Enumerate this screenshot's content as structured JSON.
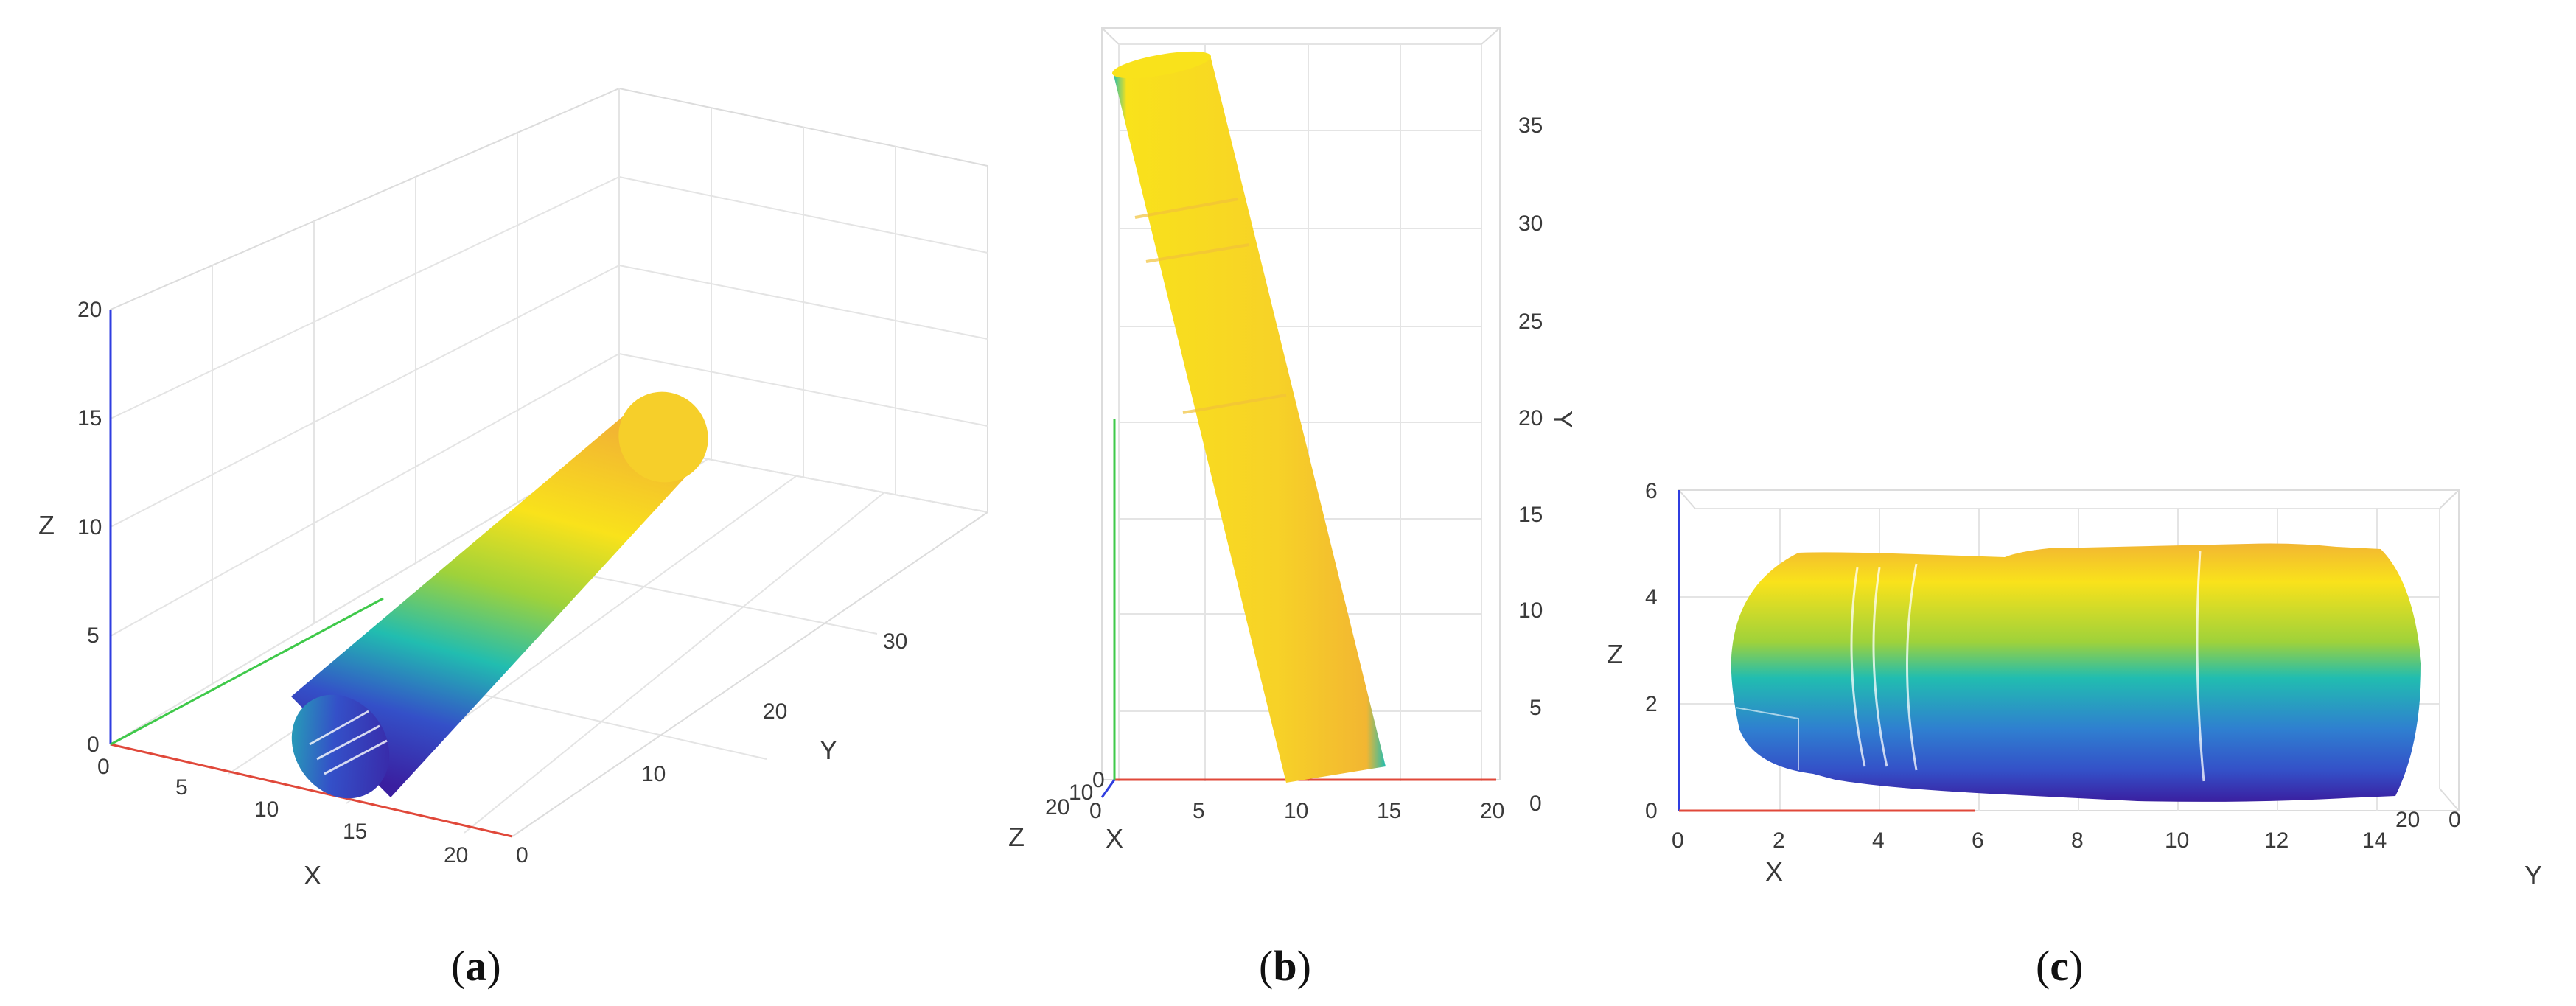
{
  "figure": {
    "caption_a_open": "(",
    "caption_a_letter": "a",
    "caption_a_close": ")",
    "caption_b_open": "(",
    "caption_b_letter": "b",
    "caption_b_close": ")",
    "caption_c_open": "(",
    "caption_c_letter": "c",
    "caption_c_close": ")"
  },
  "colors": {
    "surface_top": "#f9e21b",
    "surface_mid": "#f2b632",
    "surface_cyan": "#21bdb0",
    "surface_blue": "#3450c8",
    "surface_bottom": "#3a1fa0",
    "axis_x": "#e0483a",
    "axis_y": "#3fc94a",
    "axis_z": "#2f3ee0"
  },
  "chart_data": [
    {
      "id": "a",
      "type": "surface3d",
      "xlabel": "X",
      "ylabel": "Y",
      "zlabel": "Z",
      "xlim": [
        0,
        20
      ],
      "ylim": [
        0,
        40
      ],
      "zlim": [
        0,
        20
      ],
      "xticks": [
        "0",
        "5",
        "10",
        "15",
        "20"
      ],
      "yticks": [
        "0",
        "10",
        "20",
        "30"
      ],
      "zticks": [
        "0",
        "5",
        "10",
        "15",
        "20"
      ],
      "shape": "cylinder",
      "grid": true
    },
    {
      "id": "b",
      "type": "surface3d",
      "xlabel": "X",
      "ylabel": "Y",
      "zlabel": "Z",
      "xlim": [
        0,
        20
      ],
      "ylim": [
        0,
        38
      ],
      "xticks": [
        "0",
        "5",
        "10",
        "15",
        "20"
      ],
      "yticks": [
        "0",
        "5",
        "10",
        "15",
        "20",
        "25",
        "30",
        "35"
      ],
      "zticks": [
        "0",
        "10",
        "20"
      ],
      "shape": "cylinder",
      "grid": true
    },
    {
      "id": "c",
      "type": "surface3d",
      "xlabel": "X",
      "ylabel": "Y",
      "zlabel": "Z",
      "ylim": [
        0,
        14
      ],
      "zlim": [
        0,
        6
      ],
      "yticks": [
        "0",
        "2",
        "4",
        "6",
        "8",
        "10",
        "12",
        "14"
      ],
      "zticks": [
        "0",
        "2",
        "4",
        "6"
      ],
      "xticks": [
        "0",
        "20"
      ],
      "shape": "cylinder",
      "grid": true
    }
  ]
}
